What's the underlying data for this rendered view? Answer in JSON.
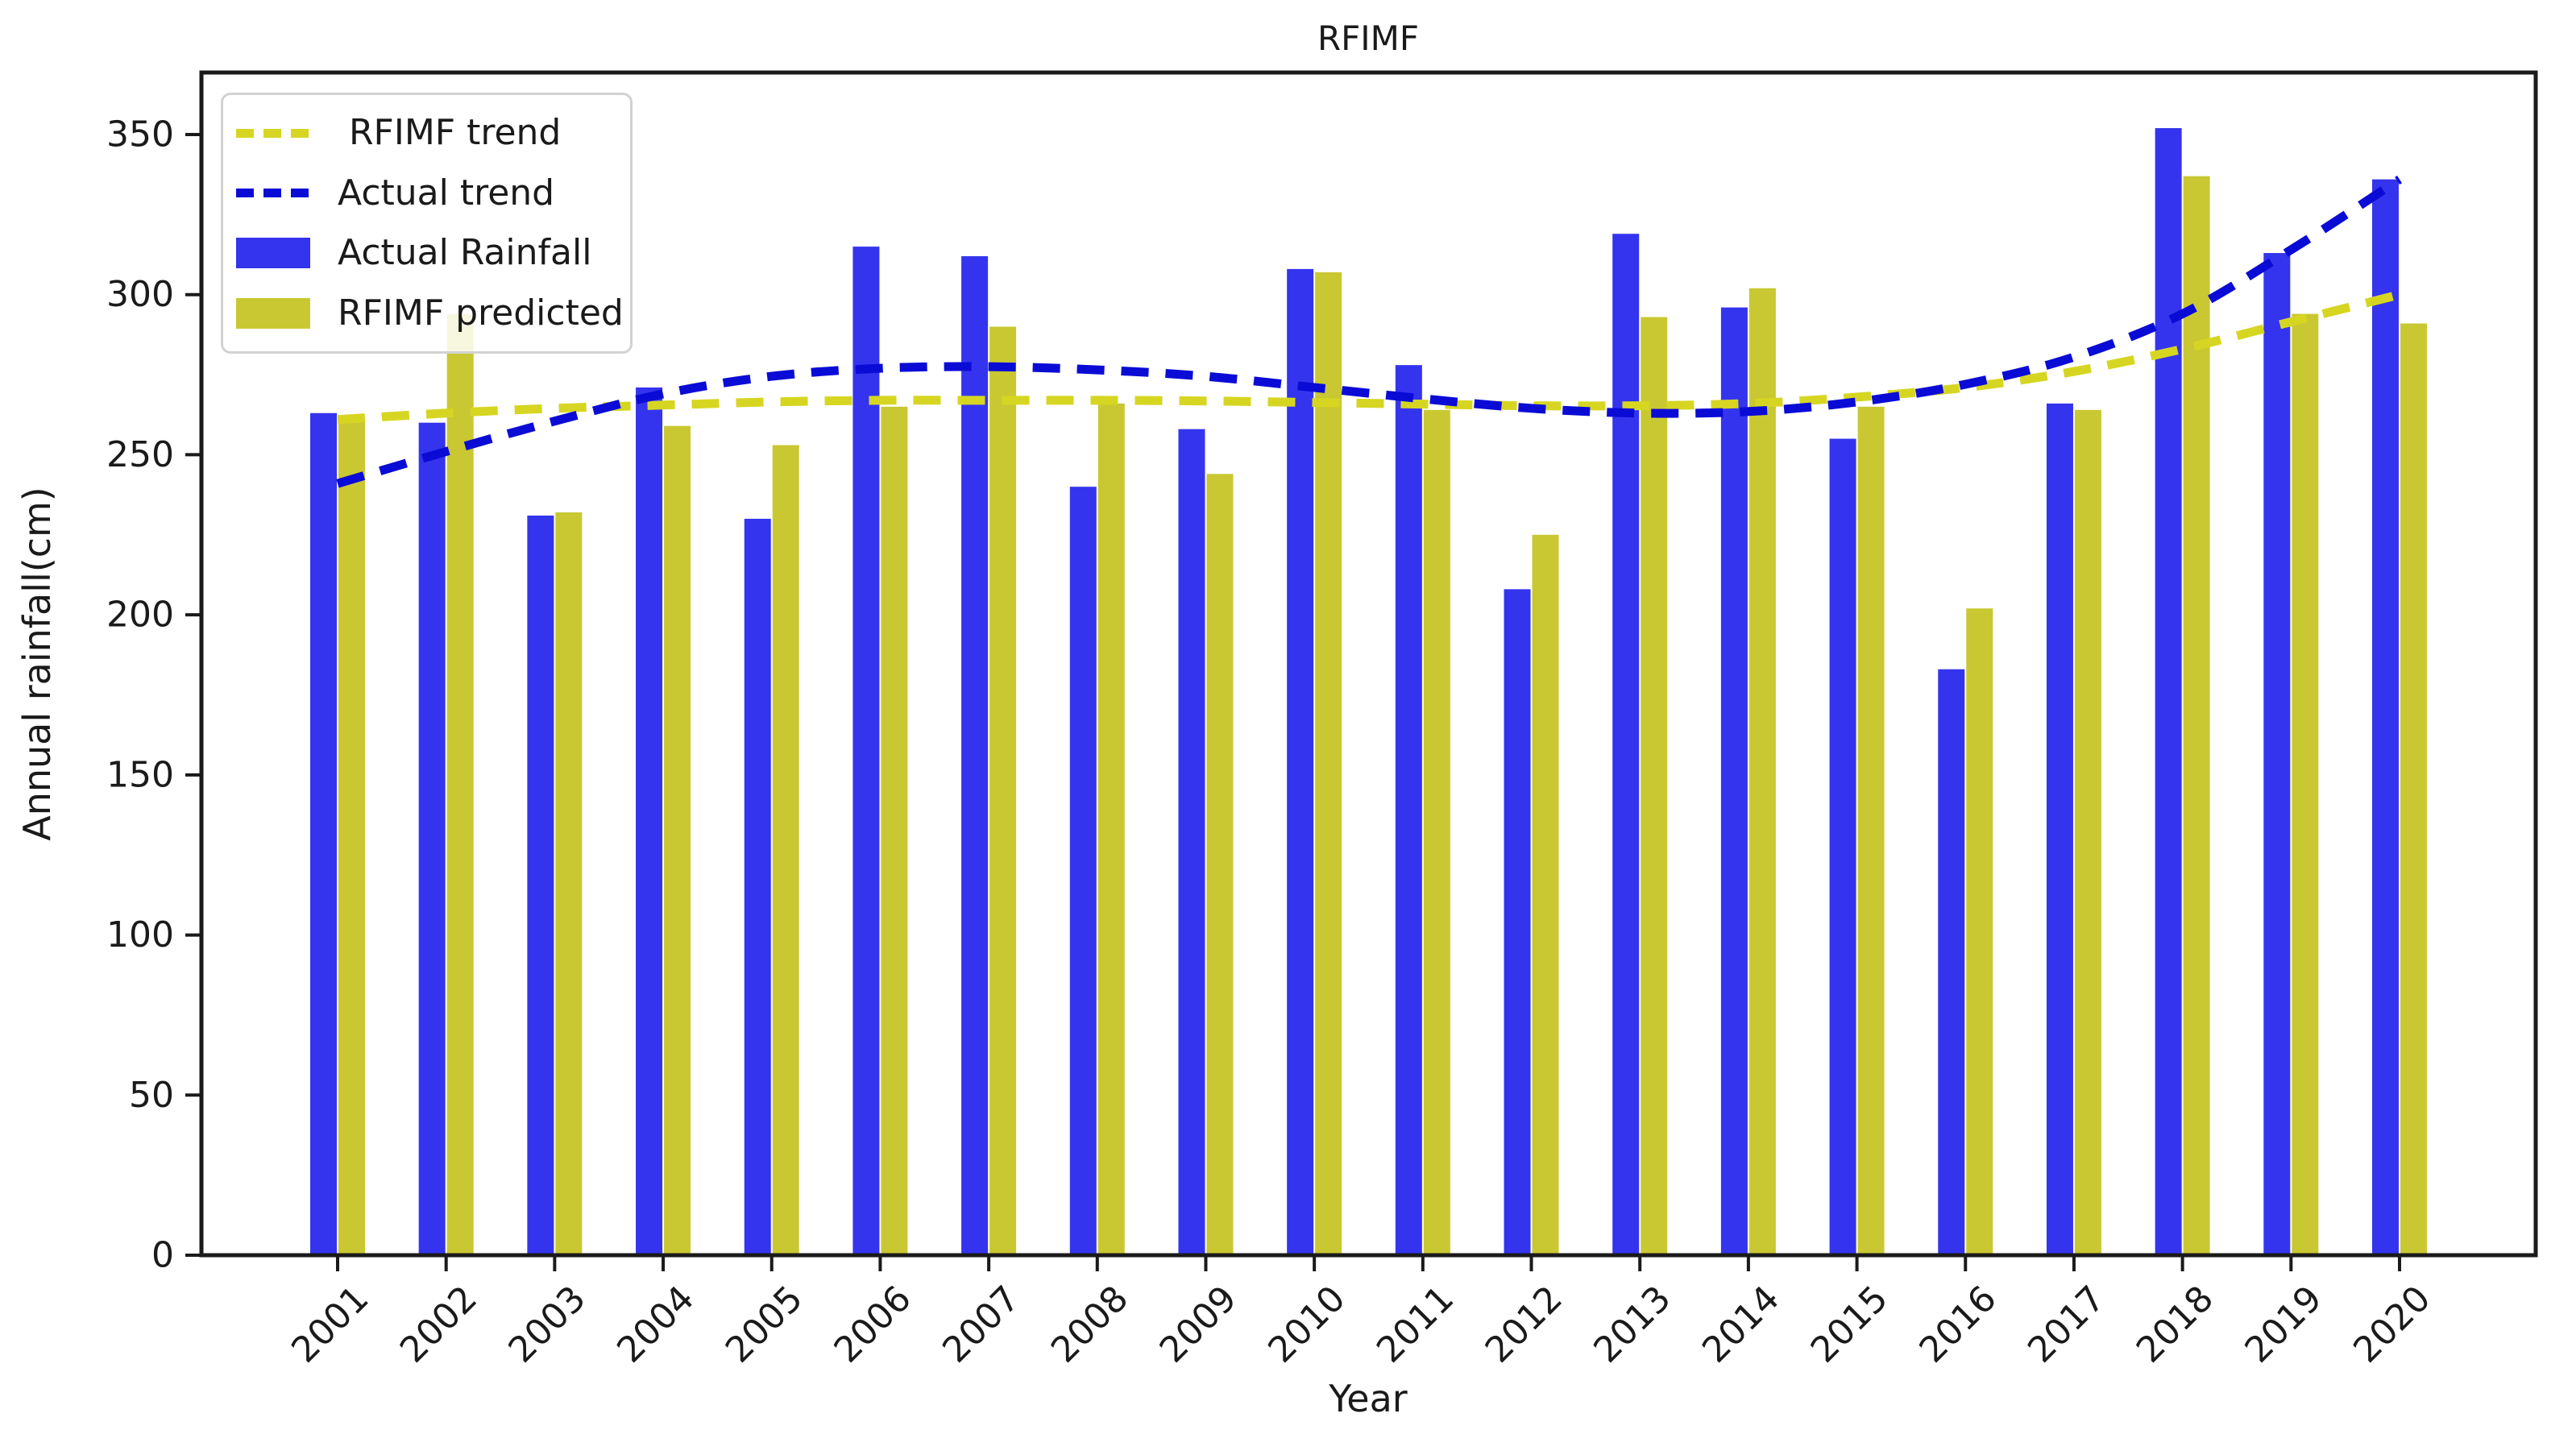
{
  "chart_data": {
    "type": "bar",
    "title": "RFIMF",
    "xlabel": "Year",
    "ylabel": "Annual rainfall(cm)",
    "ylim": [
      0,
      369
    ],
    "yticks": [
      0,
      50,
      100,
      150,
      200,
      250,
      300,
      350
    ],
    "categories": [
      "2001",
      "2002",
      "2003",
      "2004",
      "2005",
      "2006",
      "2007",
      "2008",
      "2009",
      "2010",
      "2011",
      "2012",
      "2013",
      "2014",
      "2015",
      "2016",
      "2017",
      "2018",
      "2019",
      "2020"
    ],
    "series": [
      {
        "name": "Actual Rainfall",
        "type": "bar",
        "color": "#3434ee",
        "values": [
          263,
          260,
          231,
          271,
          230,
          315,
          312,
          240,
          258,
          308,
          278,
          208,
          319,
          296,
          255,
          183,
          266,
          352,
          313,
          336
        ]
      },
      {
        "name": "RFIMF predicted",
        "type": "bar",
        "color": "#c9c832",
        "values": [
          261,
          294,
          232,
          259,
          253,
          265,
          290,
          266,
          244,
          307,
          264,
          225,
          293,
          302,
          265,
          202,
          264,
          337,
          294,
          291
        ]
      },
      {
        "name": "Actual trend",
        "type": "line",
        "style": "dashed",
        "color": "#0b0bd6",
        "values": [
          241,
          251,
          260.5,
          269,
          274.5,
          277,
          277.5,
          276.5,
          274.5,
          271,
          267.5,
          264.5,
          263,
          263.5,
          266.5,
          272,
          280.5,
          294,
          314,
          336
        ]
      },
      {
        "name": "RFIMF trend",
        "type": "line",
        "style": "dashed",
        "color": "#d6d622",
        "values": [
          261,
          263,
          264.5,
          265.5,
          266.5,
          267,
          267,
          267,
          266.8,
          266.3,
          265.8,
          265.3,
          265.3,
          266,
          268,
          271,
          276,
          283,
          291.5,
          300
        ]
      }
    ],
    "legend": [
      {
        "label": " RFIMF trend",
        "key": "dashed-line",
        "color": "#d6d622"
      },
      {
        "label": "Actual trend",
        "key": "dashed-line",
        "color": "#0b0bd6"
      },
      {
        "label": "Actual Rainfall",
        "key": "patch",
        "color": "#3434ee"
      },
      {
        "label": "RFIMF predicted",
        "key": "patch",
        "color": "#c9c832"
      }
    ],
    "legend_position": "upper left",
    "grid": false,
    "axis_color": "#1a1a1a"
  }
}
